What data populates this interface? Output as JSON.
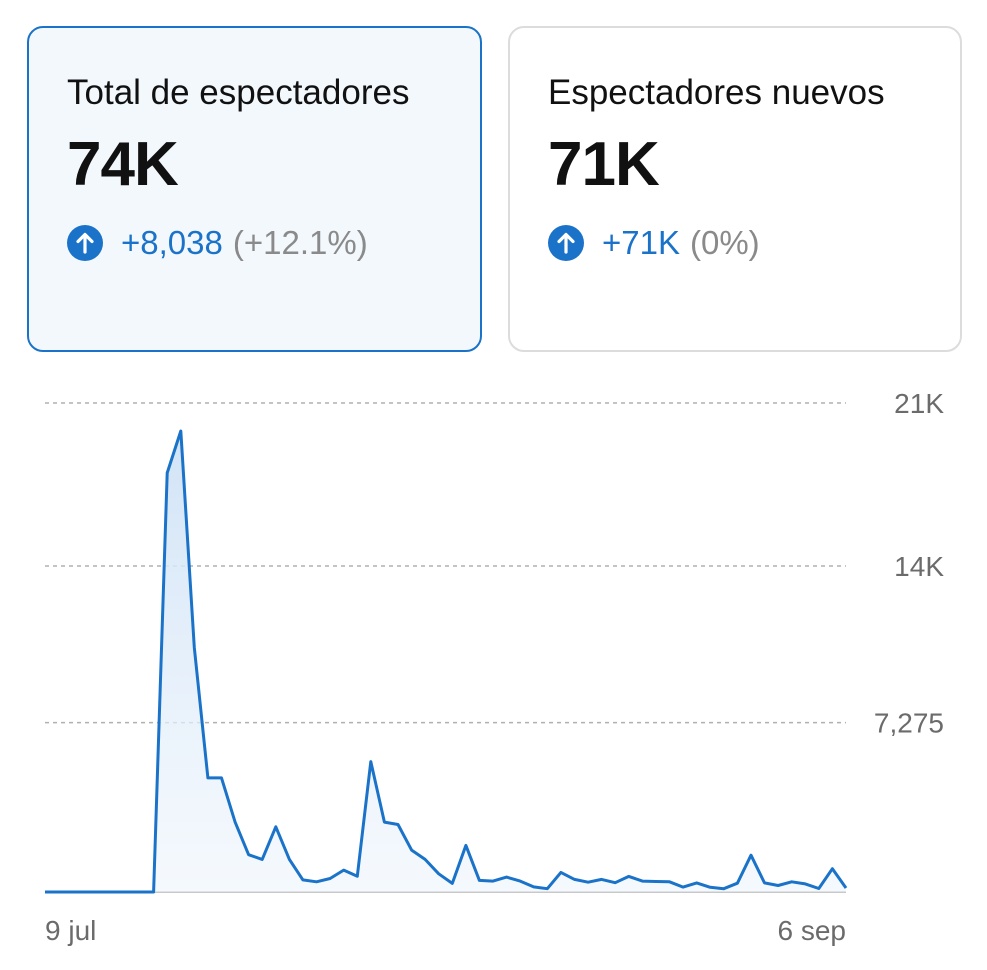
{
  "cards": [
    {
      "title": "Total de espectadores",
      "value": "74K",
      "delta": "+8,038",
      "delta_pct": "(+12.1%)",
      "icon": "arrow-up-circle-icon",
      "selected": true
    },
    {
      "title": "Espectadores nuevos",
      "value": "71K",
      "delta": "+71K",
      "delta_pct": "(0%)",
      "icon": "arrow-up-circle-icon",
      "selected": false
    }
  ],
  "colors": {
    "accent": "#1a73c8",
    "muted": "#8a8a8a",
    "grid": "#b0b0b0"
  },
  "chart_data": {
    "type": "area",
    "xlabel": "",
    "ylabel": "",
    "x_tick_labels": [
      "9 jul",
      "6 sep"
    ],
    "y_ticks": [
      {
        "value": 7275,
        "label": "7,275"
      },
      {
        "value": 14000,
        "label": "14K"
      },
      {
        "value": 21000,
        "label": "21K"
      }
    ],
    "ylim": [
      0,
      20700
    ],
    "grid": true,
    "legend": "none",
    "series": [
      {
        "values": [
          0,
          0,
          0,
          0,
          0,
          0,
          0,
          0,
          0,
          18000,
          19800,
          10500,
          4900,
          4900,
          3000,
          1600,
          1400,
          2800,
          1400,
          520,
          440,
          580,
          940,
          680,
          5600,
          3000,
          2900,
          1800,
          1400,
          780,
          370,
          2000,
          500,
          470,
          640,
          470,
          220,
          140,
          840,
          540,
          420,
          540,
          400,
          670,
          470,
          450,
          440,
          210,
          390,
          200,
          140,
          380,
          1580,
          390,
          280,
          440,
          350,
          150,
          1000,
          170
        ]
      }
    ]
  }
}
